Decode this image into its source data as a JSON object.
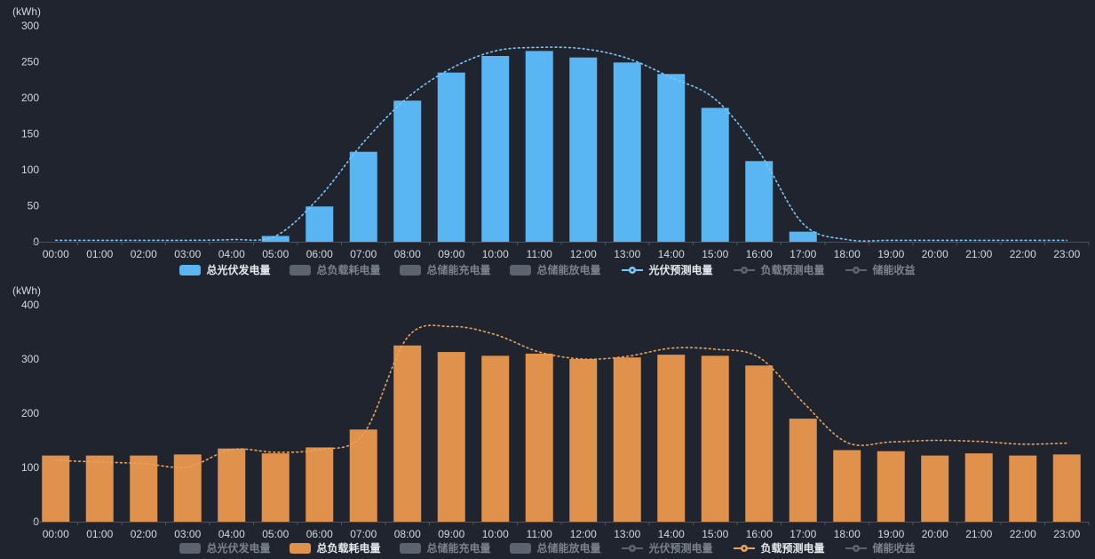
{
  "colors": {
    "background": "#1f242e",
    "axis_text": "#d3d7de",
    "axis_line": "#4a5260",
    "inactive_swatch": "#5d636e",
    "inactive_text": "#7c828c",
    "active_text": "#e6e9ef",
    "pv_bar": "#5ab6f2",
    "pv_line": "#7cc6f7",
    "load_bar": "#e0924d",
    "load_line": "#e6a35e"
  },
  "chart_data": [
    {
      "id": "pv",
      "type": "bar",
      "title": "",
      "unit_label": "(kWh)",
      "ylabel": "(kWh)",
      "xlabel": "",
      "ylim": [
        0,
        300
      ],
      "y_ticks": [
        300,
        250,
        200,
        150,
        100,
        50,
        0
      ],
      "grid": false,
      "legend_position": "bottom",
      "categories": [
        "00:00",
        "01:00",
        "02:00",
        "03:00",
        "04:00",
        "05:00",
        "06:00",
        "07:00",
        "08:00",
        "09:00",
        "10:00",
        "11:00",
        "12:00",
        "13:00",
        "14:00",
        "15:00",
        "16:00",
        "17:00",
        "18:00",
        "19:00",
        "20:00",
        "21:00",
        "22:00",
        "23:00"
      ],
      "legend": [
        {
          "label": "总光伏发电量",
          "icon": "bar",
          "active": true,
          "color": "#5ab6f2"
        },
        {
          "label": "总负载耗电量",
          "icon": "bar",
          "active": false,
          "color": "#5d636e"
        },
        {
          "label": "总储能充电量",
          "icon": "bar",
          "active": false,
          "color": "#5d636e"
        },
        {
          "label": "总储能放电量",
          "icon": "bar",
          "active": false,
          "color": "#5d636e"
        },
        {
          "label": "光伏预测电量",
          "icon": "line",
          "active": true,
          "color": "#7cc6f7"
        },
        {
          "label": "负载预测电量",
          "icon": "line",
          "active": false,
          "color": "#5d636e"
        },
        {
          "label": "储能收益",
          "icon": "line",
          "active": false,
          "color": "#5d636e"
        }
      ],
      "series": [
        {
          "name": "总光伏发电量",
          "type": "bar",
          "color": "#5ab6f2",
          "values": [
            0,
            0,
            0,
            0,
            0,
            8,
            49,
            125,
            196,
            235,
            258,
            265,
            256,
            249,
            233,
            186,
            112,
            14,
            0,
            0,
            0,
            0,
            0,
            0
          ]
        },
        {
          "name": "光伏预测电量",
          "type": "line",
          "line_style": "dotted",
          "color": "#7cc6f7",
          "values": [
            2,
            2,
            2,
            2,
            3,
            8,
            62,
            138,
            200,
            241,
            265,
            270,
            268,
            255,
            228,
            198,
            125,
            25,
            3,
            2,
            2,
            2,
            2,
            2
          ]
        }
      ]
    },
    {
      "id": "load",
      "type": "bar",
      "title": "",
      "unit_label": "(kWh)",
      "ylabel": "(kWh)",
      "xlabel": "",
      "ylim": [
        0,
        400
      ],
      "y_ticks": [
        400,
        300,
        200,
        100,
        0
      ],
      "grid": false,
      "legend_position": "bottom",
      "categories": [
        "00:00",
        "01:00",
        "02:00",
        "03:00",
        "04:00",
        "05:00",
        "06:00",
        "07:00",
        "08:00",
        "09:00",
        "10:00",
        "11:00",
        "12:00",
        "13:00",
        "14:00",
        "15:00",
        "16:00",
        "17:00",
        "18:00",
        "19:00",
        "20:00",
        "21:00",
        "22:00",
        "23:00"
      ],
      "legend": [
        {
          "label": "总光伏发电量",
          "icon": "bar",
          "active": false,
          "color": "#5d636e"
        },
        {
          "label": "总负载耗电量",
          "icon": "bar",
          "active": true,
          "color": "#e0924d"
        },
        {
          "label": "总储能充电量",
          "icon": "bar",
          "active": false,
          "color": "#5d636e"
        },
        {
          "label": "总储能放电量",
          "icon": "bar",
          "active": false,
          "color": "#5d636e"
        },
        {
          "label": "光伏预测电量",
          "icon": "line",
          "active": false,
          "color": "#5d636e"
        },
        {
          "label": "负载预测电量",
          "icon": "line",
          "active": true,
          "color": "#e6a35e"
        },
        {
          "label": "储能收益",
          "icon": "line",
          "active": false,
          "color": "#5d636e"
        }
      ],
      "series": [
        {
          "name": "总负载耗电量",
          "type": "bar",
          "color": "#e0924d",
          "values": [
            122,
            122,
            122,
            124,
            135,
            126,
            137,
            170,
            325,
            313,
            306,
            310,
            300,
            303,
            308,
            306,
            288,
            190,
            132,
            130,
            122,
            126,
            122,
            124
          ]
        },
        {
          "name": "负载预测电量",
          "type": "line",
          "line_style": "dotted",
          "color": "#e6a35e",
          "values": [
            113,
            110,
            107,
            101,
            133,
            128,
            133,
            162,
            340,
            360,
            345,
            313,
            300,
            305,
            320,
            318,
            303,
            220,
            146,
            147,
            150,
            148,
            143,
            145
          ]
        }
      ]
    }
  ]
}
